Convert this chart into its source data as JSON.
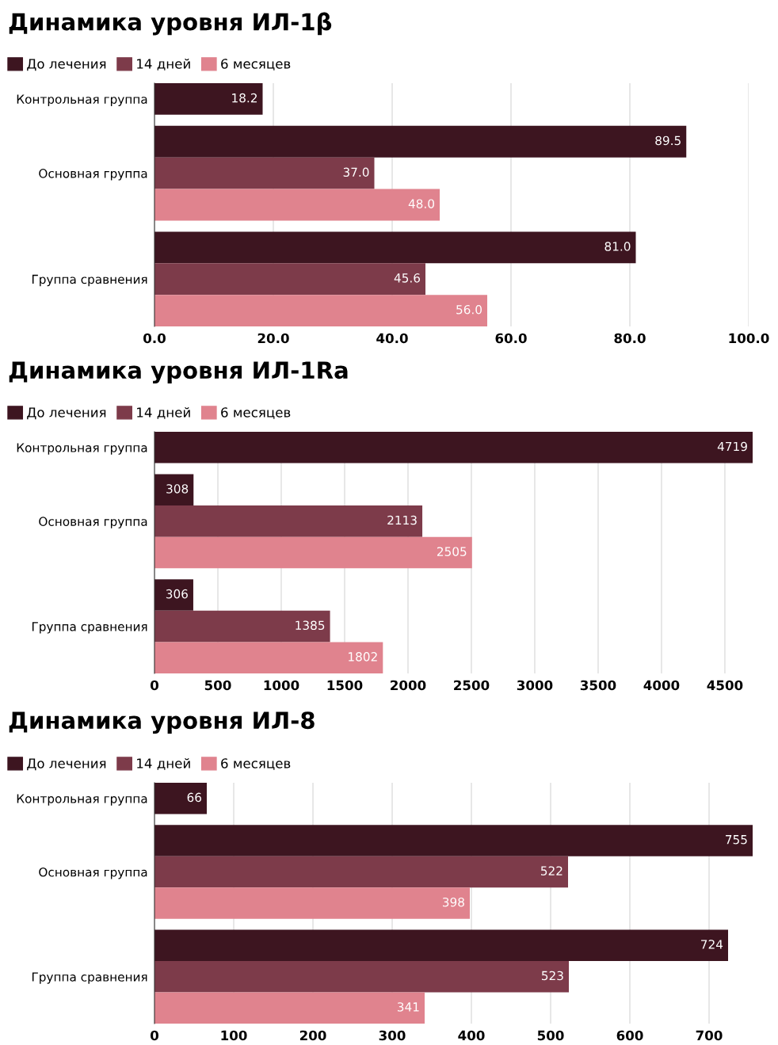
{
  "chart_data": [
    {
      "type": "bar",
      "orientation": "horizontal",
      "title": "Динамика уровня ИЛ-1β",
      "categories": [
        "Контрольная группа",
        "Основная группа",
        "Группа сравнения"
      ],
      "series": [
        {
          "name": "До лечения",
          "color": "#3d1520",
          "values": [
            18.2,
            89.5,
            81.0
          ],
          "value_labels": [
            "18.2",
            "89.5",
            "81.0"
          ]
        },
        {
          "name": "14 дней",
          "color": "#7d3b4a",
          "values": [
            null,
            37.0,
            45.6
          ],
          "value_labels": [
            null,
            "37.0",
            "45.6"
          ]
        },
        {
          "name": "6 месяцев",
          "color": "#e0838e",
          "values": [
            null,
            48.0,
            56.0
          ],
          "value_labels": [
            null,
            "48.0",
            "56.0"
          ]
        }
      ],
      "xlim": [
        0,
        100
      ],
      "xticks": [
        {
          "value": 0,
          "label": "0.0"
        },
        {
          "value": 20,
          "label": "20.0"
        },
        {
          "value": 40,
          "label": "40.0"
        },
        {
          "value": 60,
          "label": "60.0"
        },
        {
          "value": 80,
          "label": "80.0"
        },
        {
          "value": 100,
          "label": "100.0"
        }
      ],
      "grid": "x",
      "legend": "top left"
    },
    {
      "type": "bar",
      "orientation": "horizontal",
      "title": "Динамика уровня ИЛ-1Ra",
      "categories": [
        "Контрольная группа",
        "Основная группа",
        "Группа сравнения"
      ],
      "series": [
        {
          "name": "До лечения",
          "color": "#3d1520",
          "values": [
            4719,
            308,
            306
          ]
        },
        {
          "name": "14 дней",
          "color": "#7d3b4a",
          "values": [
            null,
            2113,
            1385
          ]
        },
        {
          "name": "6 месяцев",
          "color": "#e0838e",
          "values": [
            null,
            2505,
            1802
          ]
        }
      ],
      "data_labels": true,
      "xlim": [
        0,
        4719
      ],
      "xticks": [
        0,
        500,
        1000,
        1500,
        2000,
        2500,
        3000,
        3500,
        4000,
        4500
      ],
      "grid": "x",
      "legend": "top left"
    },
    {
      "type": "bar",
      "orientation": "horizontal",
      "title": "Динамика уровня ИЛ-8",
      "categories": [
        "Контрольная группа",
        "Основная группа",
        "Группа сравнения"
      ],
      "series": [
        {
          "name": "До лечения",
          "color": "#3d1520",
          "values": [
            66,
            755,
            724
          ]
        },
        {
          "name": "14 дней",
          "color": "#7d3b4a",
          "values": [
            null,
            522,
            523
          ]
        },
        {
          "name": "6 месяцев",
          "color": "#e0838e",
          "values": [
            null,
            398,
            341
          ]
        }
      ],
      "data_labels": true,
      "xlim": [
        0,
        755
      ],
      "xticks": [
        0,
        100,
        200,
        300,
        400,
        500,
        600,
        700
      ],
      "grid": "x",
      "legend": "top left"
    }
  ]
}
